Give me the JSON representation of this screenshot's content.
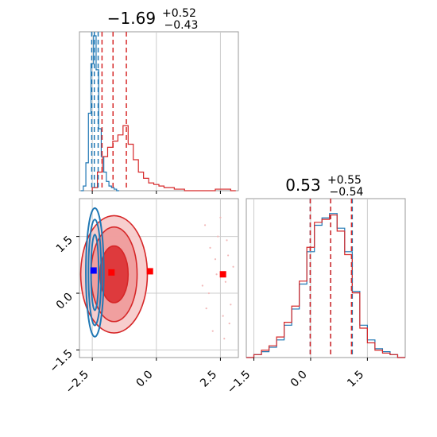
{
  "chart_data": [
    {
      "type": "histogram",
      "panel": "marginal-1",
      "title_value": "−1.69",
      "title_sup": "+0.52",
      "title_sub": "−0.43",
      "xlim": [
        -3.0,
        3.2
      ],
      "xticks": [
        -2.5,
        0.0,
        2.5
      ],
      "grid": true,
      "series": [
        {
          "color": "#1f77b4",
          "bins_x": [
            -2.9,
            -2.8,
            -2.7,
            -2.6,
            -2.5,
            -2.4,
            -2.3,
            -2.2,
            -2.1,
            -2.0,
            -1.9,
            -1.8,
            -1.7,
            -1.6,
            -1.5
          ],
          "heights": [
            0.0,
            0.03,
            0.18,
            0.5,
            0.82,
            1.0,
            0.78,
            0.4,
            0.22,
            0.12,
            0.06,
            0.03,
            0.02,
            0.01,
            0.0
          ],
          "quantile_lines": [
            -2.52,
            -2.42,
            -2.27
          ]
        },
        {
          "color": "#d62728",
          "bins_x": [
            -2.4,
            -2.2,
            -2.0,
            -1.8,
            -1.6,
            -1.4,
            -1.2,
            -1.0,
            -0.8,
            -0.6,
            -0.4,
            -0.2,
            0.0,
            0.2,
            0.4,
            0.6,
            0.8,
            1.0,
            1.2,
            1.4,
            1.6,
            1.8,
            2.0,
            2.2,
            2.4,
            2.6,
            2.8,
            3.0
          ],
          "heights": [
            0.02,
            0.12,
            0.22,
            0.28,
            0.32,
            0.36,
            0.42,
            0.3,
            0.2,
            0.12,
            0.08,
            0.05,
            0.04,
            0.03,
            0.02,
            0.02,
            0.01,
            0.01,
            0.0,
            0.0,
            0.0,
            0.0,
            0.0,
            0.0,
            0.01,
            0.01,
            0.01,
            0.0
          ],
          "quantile_lines": [
            -2.12,
            -1.69,
            -1.17
          ]
        }
      ]
    },
    {
      "type": "contour",
      "panel": "joint",
      "xlim": [
        -3.0,
        3.2
      ],
      "ylim": [
        -1.7,
        2.5
      ],
      "xticks": [
        -2.5,
        0.0,
        2.5
      ],
      "yticks": [
        -1.5,
        0.0,
        1.5
      ],
      "xtick_labels": [
        "−2.5",
        "0.0",
        "2.5"
      ],
      "ytick_labels": [
        "−1.5",
        "0.0",
        "1.5"
      ],
      "grid": true,
      "series": [
        {
          "color": "#1f77b4",
          "center": [
            -2.4,
            0.55
          ],
          "contour_radii": [
            [
              0.15,
              1.0
            ],
            [
              0.25,
              1.4
            ],
            [
              0.35,
              1.7
            ]
          ]
        },
        {
          "color": "#d62728",
          "center": [
            -1.65,
            0.5
          ],
          "contour_radii": [
            [
              0.55,
              0.75
            ],
            [
              0.9,
              1.25
            ],
            [
              1.3,
              1.55
            ]
          ]
        }
      ],
      "markers": [
        {
          "color": "#0000ff",
          "x": -2.45,
          "y": 0.6
        },
        {
          "color": "#ff0000",
          "x": -1.75,
          "y": 0.55
        },
        {
          "color": "#ff0000",
          "x": -0.25,
          "y": 0.58
        },
        {
          "color": "#ff0000",
          "x": 2.6,
          "y": 0.5
        }
      ],
      "outliers_x": [
        1.9,
        2.1,
        2.3,
        2.4,
        2.6,
        2.7,
        2.8,
        2.9,
        3.0,
        2.2,
        2.5,
        1.8,
        2.85,
        2.35,
        1.95,
        2.75,
        2.05,
        2.65
      ],
      "outliers_y": [
        1.8,
        1.2,
        0.9,
        1.5,
        -0.6,
        0.3,
        1.0,
        -0.3,
        0.7,
        -1.0,
        2.0,
        0.2,
        -0.8,
        0.5,
        -0.4,
        1.4,
        0.0,
        -1.2
      ]
    },
    {
      "type": "histogram",
      "panel": "marginal-2",
      "title_value": "0.53",
      "title_sup": "+0.55",
      "title_sub": "−0.54",
      "xlim": [
        -1.7,
        2.5
      ],
      "xticks": [
        -1.5,
        0.0,
        1.5
      ],
      "xtick_labels": [
        "−1.5",
        "0.0",
        "1.5"
      ],
      "grid": true,
      "series": [
        {
          "color": "#1f77b4",
          "bins_x": [
            -1.6,
            -1.4,
            -1.2,
            -1.0,
            -0.8,
            -0.6,
            -0.4,
            -0.2,
            0.0,
            0.2,
            0.4,
            0.6,
            0.8,
            1.0,
            1.2,
            1.4,
            1.6,
            1.8,
            2.0,
            2.2,
            2.4
          ],
          "heights": [
            0.0,
            0.02,
            0.04,
            0.07,
            0.12,
            0.22,
            0.33,
            0.5,
            0.72,
            0.9,
            0.95,
            0.98,
            0.88,
            0.72,
            0.45,
            0.22,
            0.12,
            0.06,
            0.04,
            0.02,
            0.0
          ],
          "quantile_lines": [
            -0.01,
            0.53,
            1.1
          ]
        },
        {
          "color": "#d62728",
          "bins_x": [
            -1.6,
            -1.4,
            -1.2,
            -1.0,
            -0.8,
            -0.6,
            -0.4,
            -0.2,
            0.0,
            0.2,
            0.4,
            0.6,
            0.8,
            1.0,
            1.2,
            1.4,
            1.6,
            1.8,
            2.0,
            2.2,
            2.4
          ],
          "heights": [
            0.0,
            0.02,
            0.05,
            0.08,
            0.14,
            0.24,
            0.35,
            0.52,
            0.75,
            0.92,
            0.94,
            0.97,
            0.86,
            0.7,
            0.44,
            0.2,
            0.1,
            0.05,
            0.03,
            0.02,
            0.0
          ],
          "quantile_lines": [
            -0.01,
            0.53,
            1.08
          ]
        }
      ]
    }
  ]
}
